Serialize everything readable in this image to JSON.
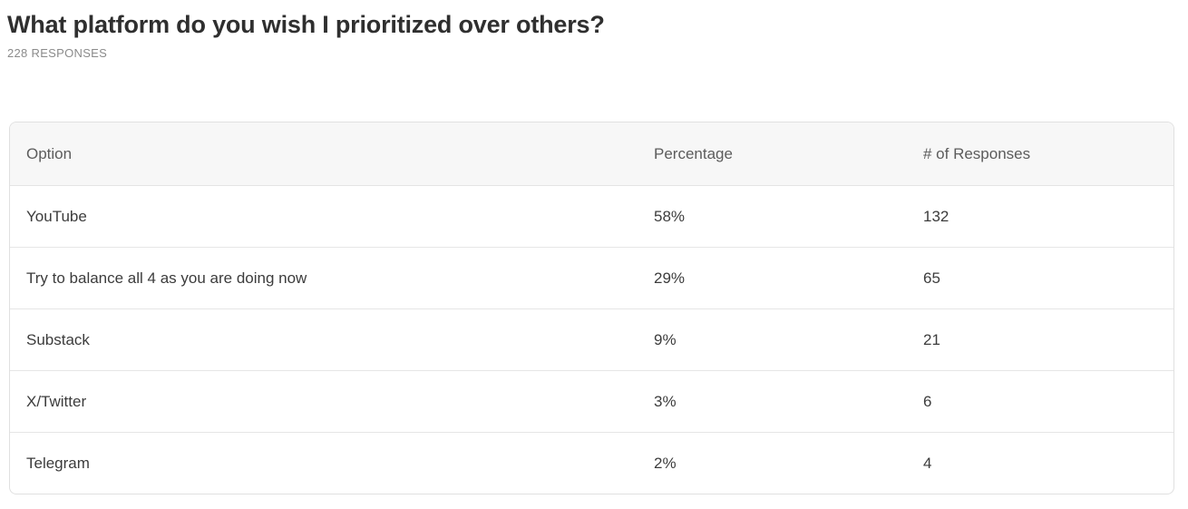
{
  "header": {
    "title": "What platform do you wish I prioritized over others?",
    "responses_label": "228 RESPONSES"
  },
  "chart_data": {
    "type": "table",
    "title": "What platform do you wish I prioritized over others?",
    "subtitle": "228 RESPONSES",
    "total_responses": 228,
    "columns": [
      "Option",
      "Percentage",
      "# of Responses"
    ],
    "rows": [
      [
        "YouTube",
        "58%",
        132
      ],
      [
        "Try to balance all 4 as you are doing now",
        "29%",
        65
      ],
      [
        "Substack",
        "9%",
        21
      ],
      [
        "X/Twitter",
        "3%",
        6
      ],
      [
        "Telegram",
        "2%",
        4
      ]
    ]
  },
  "colors": {
    "title_text": "#2f2f2f",
    "subtitle_text": "#8b8b8b",
    "table_header_bg": "#f7f7f7",
    "table_header_text": "#5c5c5c",
    "cell_text": "#3c3c3c",
    "border": "#e0e0e0",
    "row_divider": "#e6e6e6",
    "background": "#ffffff"
  }
}
